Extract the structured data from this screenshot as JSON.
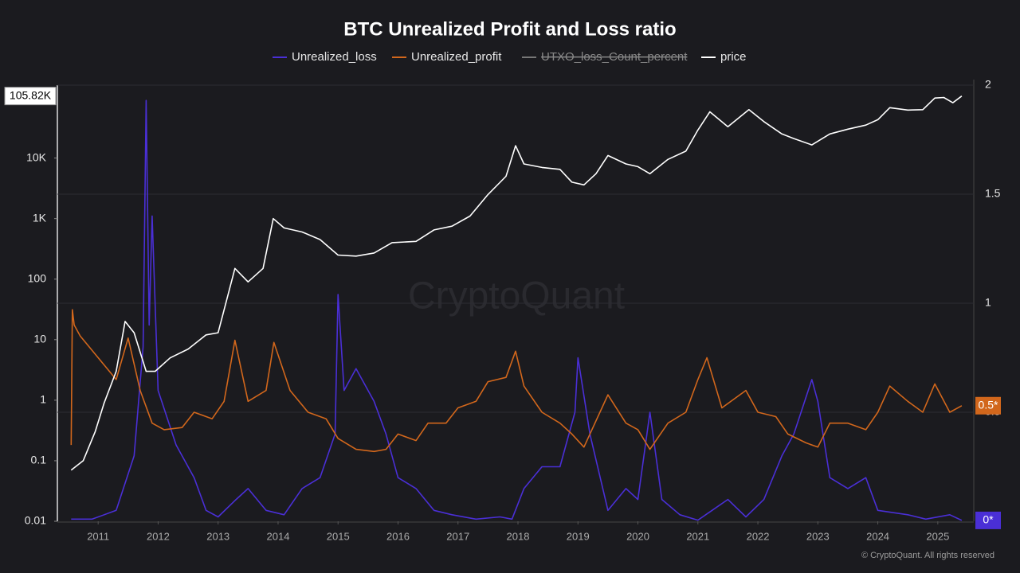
{
  "chart_data": {
    "type": "line",
    "title": "BTC Unrealized Profit and Loss ratio",
    "watermark": "CryptoQuant",
    "copyright": "© CryptoQuant. All rights reserved",
    "xlim": [
      2010.32,
      2025.6
    ],
    "xticks": [
      2011,
      2012,
      2013,
      2014,
      2015,
      2016,
      2017,
      2018,
      2019,
      2020,
      2021,
      2022,
      2023,
      2024,
      2025
    ],
    "ylim": [
      0.01,
      160000
    ],
    "ylog": true,
    "yticks": [
      0.01,
      0.1,
      1,
      10,
      100,
      {
        "value": 1000,
        "label": "1K"
      },
      {
        "value": 10000,
        "label": "10K"
      }
    ],
    "y2lim": [
      0,
      2
    ],
    "y2ticks": [
      0.5,
      1,
      1.5,
      2
    ],
    "grid": true,
    "series": [
      {
        "name": "Unrealized_loss",
        "color": "#4a2fd6",
        "axis": "y2",
        "end_label": "0*",
        "x": [
          2010.55,
          2010.9,
          2011.3,
          2011.6,
          2011.75,
          2011.8,
          2011.85,
          2011.9,
          2012.0,
          2012.3,
          2012.6,
          2012.8,
          2013.0,
          2013.3,
          2013.5,
          2013.8,
          2014.1,
          2014.4,
          2014.7,
          2014.95,
          2015.0,
          2015.1,
          2015.3,
          2015.6,
          2015.8,
          2016.0,
          2016.3,
          2016.6,
          2016.9,
          2017.3,
          2017.7,
          2017.9,
          2018.1,
          2018.4,
          2018.7,
          2018.95,
          2019.0,
          2019.2,
          2019.5,
          2019.8,
          2020.0,
          2020.2,
          2020.4,
          2020.7,
          2021.0,
          2021.5,
          2021.8,
          2022.1,
          2022.4,
          2022.6,
          2022.9,
          2023.0,
          2023.2,
          2023.5,
          2023.8,
          2024.0,
          2024.5,
          2024.8,
          2025.2,
          2025.4
        ],
        "values": [
          0.01,
          0.01,
          0.05,
          0.3,
          0.8,
          1.93,
          0.9,
          1.4,
          0.6,
          0.35,
          0.2,
          0.05,
          0.02,
          0.1,
          0.15,
          0.05,
          0.03,
          0.15,
          0.2,
          0.4,
          1.04,
          0.6,
          0.7,
          0.55,
          0.4,
          0.2,
          0.15,
          0.05,
          0.03,
          0.01,
          0.02,
          0.01,
          0.15,
          0.25,
          0.25,
          0.5,
          0.75,
          0.4,
          0.05,
          0.15,
          0.1,
          0.5,
          0.1,
          0.03,
          0.005,
          0.1,
          0.02,
          0.1,
          0.3,
          0.4,
          0.65,
          0.55,
          0.2,
          0.15,
          0.2,
          0.05,
          0.03,
          0.01,
          0.03,
          0.004
        ]
      },
      {
        "name": "Unrealized_profit",
        "color": "#d2671c",
        "axis": "y2",
        "end_label": "0.5*",
        "x": [
          2010.55,
          2010.57,
          2010.6,
          2010.7,
          2011.0,
          2011.3,
          2011.5,
          2011.7,
          2011.9,
          2012.1,
          2012.4,
          2012.6,
          2012.9,
          2013.1,
          2013.28,
          2013.5,
          2013.8,
          2013.93,
          2014.2,
          2014.5,
          2014.8,
          2015.0,
          2015.3,
          2015.6,
          2015.8,
          2016.0,
          2016.3,
          2016.5,
          2016.8,
          2017.0,
          2017.3,
          2017.5,
          2017.8,
          2017.96,
          2018.1,
          2018.4,
          2018.7,
          2018.9,
          2019.1,
          2019.5,
          2019.8,
          2020.0,
          2020.2,
          2020.5,
          2020.8,
          2021.0,
          2021.15,
          2021.4,
          2021.8,
          2022.0,
          2022.3,
          2022.5,
          2022.8,
          2023.0,
          2023.2,
          2023.5,
          2023.8,
          2024.0,
          2024.2,
          2024.5,
          2024.75,
          2024.95,
          2025.2,
          2025.4
        ],
        "values": [
          0.35,
          0.97,
          0.9,
          0.85,
          0.75,
          0.65,
          0.84,
          0.6,
          0.45,
          0.42,
          0.43,
          0.5,
          0.47,
          0.55,
          0.83,
          0.55,
          0.6,
          0.82,
          0.6,
          0.5,
          0.47,
          0.38,
          0.33,
          0.32,
          0.33,
          0.4,
          0.37,
          0.45,
          0.45,
          0.52,
          0.55,
          0.64,
          0.66,
          0.78,
          0.62,
          0.5,
          0.45,
          0.4,
          0.34,
          0.58,
          0.45,
          0.42,
          0.33,
          0.45,
          0.5,
          0.65,
          0.75,
          0.52,
          0.6,
          0.5,
          0.48,
          0.4,
          0.36,
          0.34,
          0.45,
          0.45,
          0.42,
          0.5,
          0.62,
          0.55,
          0.5,
          0.63,
          0.5,
          0.53
        ]
      },
      {
        "name": "UTXO_loss_Count_percent",
        "color": "#8a8a8a",
        "hidden": true
      },
      {
        "name": "price",
        "color": "#ffffff",
        "axis": "y",
        "end_label": "105.82K",
        "x": [
          2010.55,
          2010.75,
          2010.95,
          2011.1,
          2011.3,
          2011.45,
          2011.6,
          2011.8,
          2011.95,
          2012.2,
          2012.5,
          2012.8,
          2013.0,
          2013.28,
          2013.5,
          2013.75,
          2013.92,
          2014.1,
          2014.4,
          2014.7,
          2015.0,
          2015.3,
          2015.6,
          2015.9,
          2016.3,
          2016.6,
          2016.9,
          2017.2,
          2017.5,
          2017.8,
          2017.96,
          2018.1,
          2018.4,
          2018.7,
          2018.9,
          2019.1,
          2019.3,
          2019.5,
          2019.8,
          2020.0,
          2020.2,
          2020.5,
          2020.8,
          2021.0,
          2021.2,
          2021.5,
          2021.85,
          2022.1,
          2022.4,
          2022.6,
          2022.9,
          2023.2,
          2023.5,
          2023.8,
          2024.0,
          2024.2,
          2024.5,
          2024.75,
          2024.95,
          2025.1,
          2025.25,
          2025.4
        ],
        "values": [
          0.07,
          0.1,
          0.3,
          0.9,
          3,
          20,
          13,
          3,
          3,
          5,
          7,
          12,
          13,
          150,
          90,
          150,
          1000,
          700,
          600,
          450,
          250,
          240,
          270,
          400,
          420,
          650,
          750,
          1100,
          2500,
          5000,
          16000,
          8000,
          7000,
          6500,
          4000,
          3600,
          5500,
          11000,
          8000,
          7200,
          5500,
          9500,
          13000,
          29000,
          58000,
          33000,
          63000,
          40000,
          25000,
          21000,
          16500,
          25000,
          30000,
          35000,
          43000,
          68000,
          62000,
          63000,
          98000,
          100000,
          82000,
          105820
        ]
      }
    ]
  }
}
